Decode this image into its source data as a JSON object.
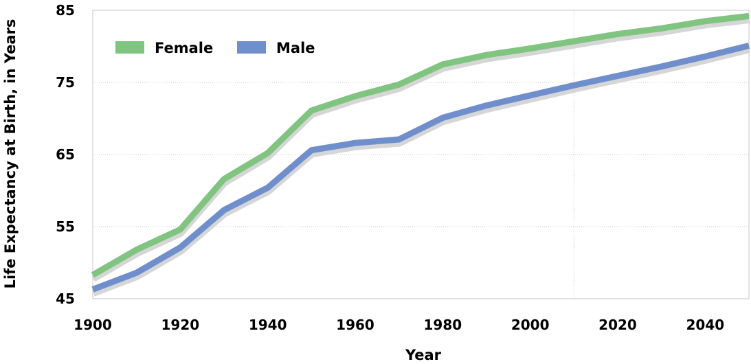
{
  "chart_data": {
    "type": "line",
    "title": "",
    "xlabel": "Year",
    "ylabel": "Life Expectancy at Birth, in Years",
    "xlim": [
      1900,
      2050
    ],
    "ylim": [
      45,
      85
    ],
    "x_ticks": [
      "1900",
      "1920",
      "1940",
      "1960",
      "1980",
      "2000",
      "2020",
      "2040"
    ],
    "y_ticks": [
      "45",
      "55",
      "65",
      "75",
      "85"
    ],
    "grid": true,
    "legend_position": "top-left",
    "x": [
      1900,
      1910,
      1920,
      1930,
      1940,
      1950,
      1960,
      1970,
      1980,
      1990,
      2000,
      2010,
      2020,
      2030,
      2040,
      2050
    ],
    "series": [
      {
        "name": "Female",
        "color": "#7fc47f",
        "values": [
          48.3,
          51.8,
          54.6,
          61.6,
          65.2,
          71.1,
          73.1,
          74.7,
          77.5,
          78.8,
          79.7,
          80.7,
          81.7,
          82.5,
          83.5,
          84.2
        ]
      },
      {
        "name": "Male",
        "color": "#6f8fcc",
        "values": [
          46.3,
          48.6,
          52.1,
          57.3,
          60.4,
          65.6,
          66.6,
          67.1,
          70.1,
          71.8,
          73.2,
          74.6,
          75.9,
          77.2,
          78.6,
          80.1
        ]
      }
    ]
  }
}
